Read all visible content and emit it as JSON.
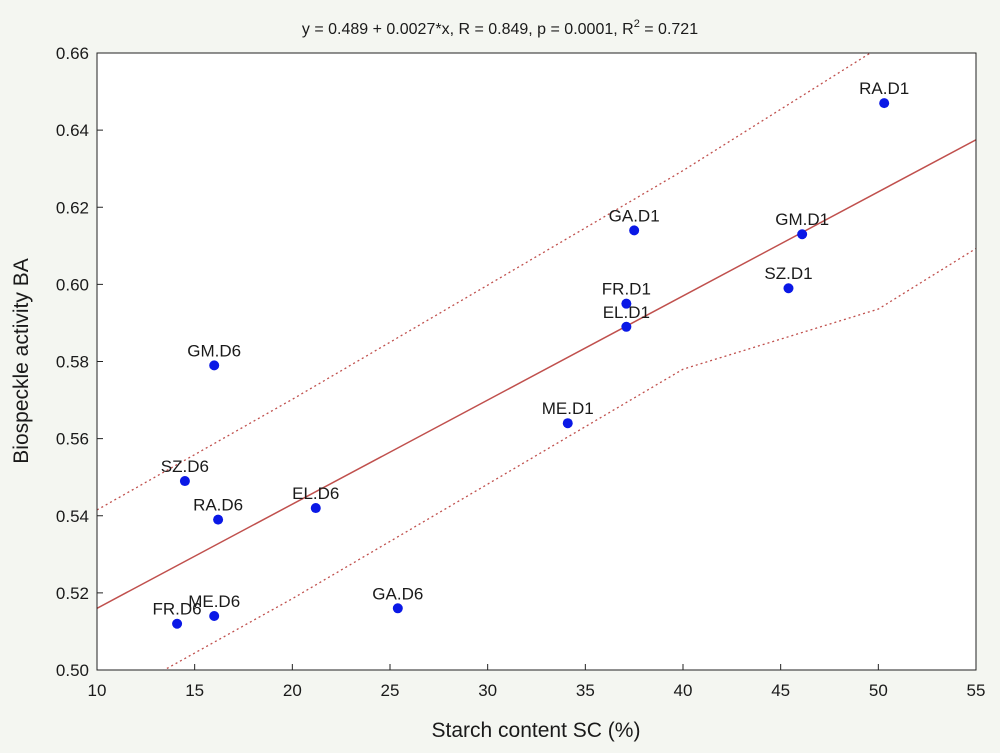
{
  "chart_data": {
    "type": "scatter",
    "title": {
      "prefix": "y = 0.489 + 0.0027*x, R = 0.849, p = 0.0001, R",
      "superscript": "2",
      "suffix": " = 0.721"
    },
    "xlabel": "Starch content SC (%)",
    "ylabel": "Biospeckle activity BA",
    "xlim": [
      10,
      55
    ],
    "ylim": [
      0.5,
      0.66
    ],
    "x_ticks": [
      10,
      15,
      20,
      25,
      30,
      35,
      40,
      45,
      50,
      55
    ],
    "y_ticks": [
      0.5,
      0.52,
      0.54,
      0.56,
      0.58,
      0.6,
      0.62,
      0.64,
      0.66
    ],
    "y_tick_labels": [
      "0.50",
      "0.52",
      "0.54",
      "0.56",
      "0.58",
      "0.60",
      "0.62",
      "0.64",
      "0.66"
    ],
    "grid": false,
    "points": [
      {
        "label": "RA.D1",
        "x": 50.3,
        "y": 0.647
      },
      {
        "label": "GA.D1",
        "x": 37.5,
        "y": 0.614
      },
      {
        "label": "GM.D1",
        "x": 46.1,
        "y": 0.613
      },
      {
        "label": "SZ.D1",
        "x": 45.4,
        "y": 0.599
      },
      {
        "label": "FR.D1",
        "x": 37.1,
        "y": 0.595
      },
      {
        "label": "EL.D1",
        "x": 37.1,
        "y": 0.589
      },
      {
        "label": "ME.D1",
        "x": 34.1,
        "y": 0.564
      },
      {
        "label": "GM.D6",
        "x": 16.0,
        "y": 0.579
      },
      {
        "label": "SZ.D6",
        "x": 14.5,
        "y": 0.549
      },
      {
        "label": "RA.D6",
        "x": 16.2,
        "y": 0.539
      },
      {
        "label": "EL.D6",
        "x": 21.2,
        "y": 0.542
      },
      {
        "label": "GA.D6",
        "x": 25.4,
        "y": 0.516
      },
      {
        "label": "ME.D6",
        "x": 16.0,
        "y": 0.514
      },
      {
        "label": "FR.D6",
        "x": 14.1,
        "y": 0.512
      }
    ],
    "regression": {
      "intercept": 0.489,
      "slope": 0.0027
    },
    "confidence_band": {
      "upper": [
        [
          10,
          0.5415
        ],
        [
          20,
          0.5702
        ],
        [
          30,
          0.5998
        ],
        [
          40,
          0.6295
        ],
        [
          50,
          0.6613
        ],
        [
          55,
          0.6786
        ]
      ],
      "lower": [
        [
          10,
          0.4903
        ],
        [
          20,
          0.5185
        ],
        [
          30,
          0.5482
        ],
        [
          40,
          0.578
        ],
        [
          50,
          0.5936
        ],
        [
          55,
          0.6093
        ]
      ]
    },
    "colors": {
      "points": "#0a18e6",
      "regression_line": "#c0504d",
      "confidence_lines": "#c0504d",
      "plot_background": "#ffffff",
      "axis": "#222222"
    }
  }
}
